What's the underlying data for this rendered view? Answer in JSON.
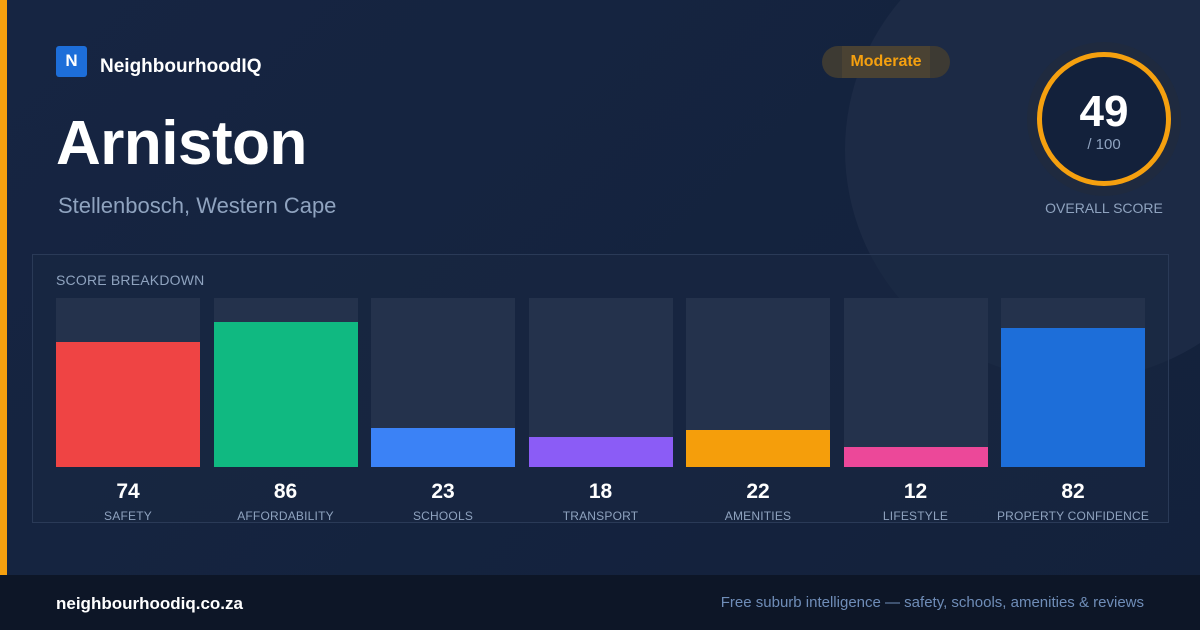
{
  "brand": {
    "logo_letter": "N",
    "name": "NeighbourhoodIQ"
  },
  "suburb": {
    "name": "Arniston",
    "region": "Stellenbosch, Western Cape"
  },
  "rating": {
    "label": "Moderate",
    "color": "#f5a00f"
  },
  "overall": {
    "score": "49",
    "max": "/ 100",
    "caption": "OVERALL SCORE"
  },
  "breakdown": {
    "title": "SCORE BREAKDOWN",
    "items": [
      {
        "label": "SAFETY",
        "value": 74,
        "color": "#ef4444"
      },
      {
        "label": "AFFORDABILITY",
        "value": 86,
        "color": "#10b981"
      },
      {
        "label": "SCHOOLS",
        "value": 23,
        "color": "#3b82f6"
      },
      {
        "label": "TRANSPORT",
        "value": 18,
        "color": "#8b5cf6"
      },
      {
        "label": "AMENITIES",
        "value": 22,
        "color": "#f59e0b"
      },
      {
        "label": "LIFESTYLE",
        "value": 12,
        "color": "#ec4899"
      },
      {
        "label": "PROPERTY CONFIDENCE",
        "value": 82,
        "color": "#1d6ed9"
      }
    ]
  },
  "footer": {
    "url": "neighbourhoodiq.co.za",
    "tagline": "Free suburb intelligence — safety, schools, amenities & reviews"
  }
}
